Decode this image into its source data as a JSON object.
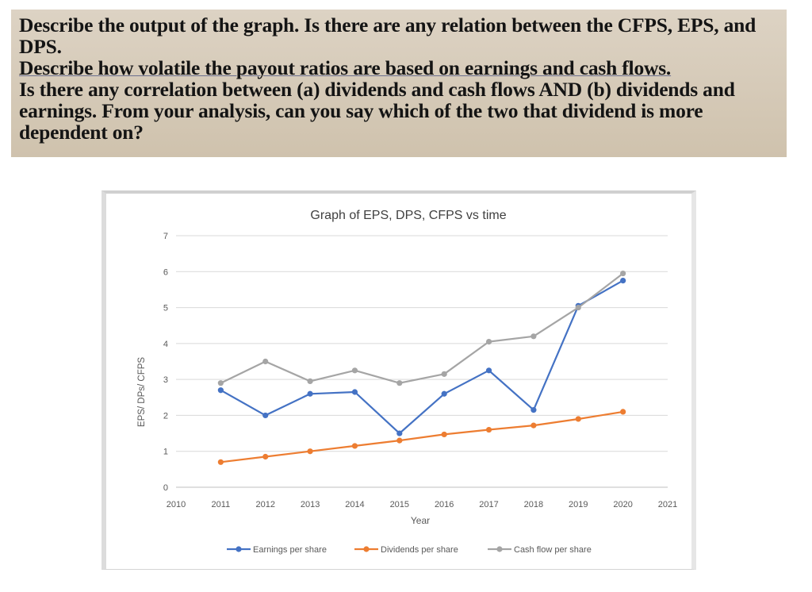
{
  "question": {
    "lines": [
      "Describe the output of the graph. Is there are any relation between the CFPS, EPS, and DPS.",
      "Describe how volatile the payout ratios are based on earnings and cash flows.",
      "Is there any correlation between (a) dividends and cash flows AND (b) dividends and earnings. From your analysis, can you say which of the two that dividend is more dependent on?"
    ]
  },
  "chart_data": {
    "type": "line",
    "title": "Graph of EPS, DPS, CFPS vs time",
    "xlabel": "Year",
    "ylabel": "EPS/ DPs/ CFPS",
    "xlim": [
      2010,
      2021
    ],
    "ylim": [
      0,
      7
    ],
    "x_ticks": [
      "2010",
      "2011",
      "2012",
      "2013",
      "2014",
      "2015",
      "2016",
      "2017",
      "2018",
      "2019",
      "2020",
      "2021"
    ],
    "y_ticks": [
      "0",
      "1",
      "2",
      "3",
      "4",
      "5",
      "6",
      "7"
    ],
    "grid": true,
    "legend_position": "bottom",
    "x": [
      2011,
      2012,
      2013,
      2014,
      2015,
      2016,
      2017,
      2018,
      2019,
      2020
    ],
    "series": [
      {
        "name": "Earnings per share",
        "color": "#4472c4",
        "values": [
          2.7,
          2.0,
          2.6,
          2.65,
          1.5,
          2.6,
          3.25,
          2.15,
          5.05,
          5.75
        ]
      },
      {
        "name": "Dividends per share",
        "color": "#ed7d31",
        "values": [
          0.7,
          0.85,
          1.0,
          1.15,
          1.3,
          1.47,
          1.6,
          1.72,
          1.9,
          2.1
        ]
      },
      {
        "name": "Cash flow per share",
        "color": "#a5a5a5",
        "values": [
          2.9,
          3.5,
          2.95,
          3.25,
          2.9,
          3.15,
          4.05,
          4.2,
          5.0,
          5.95
        ]
      }
    ]
  }
}
